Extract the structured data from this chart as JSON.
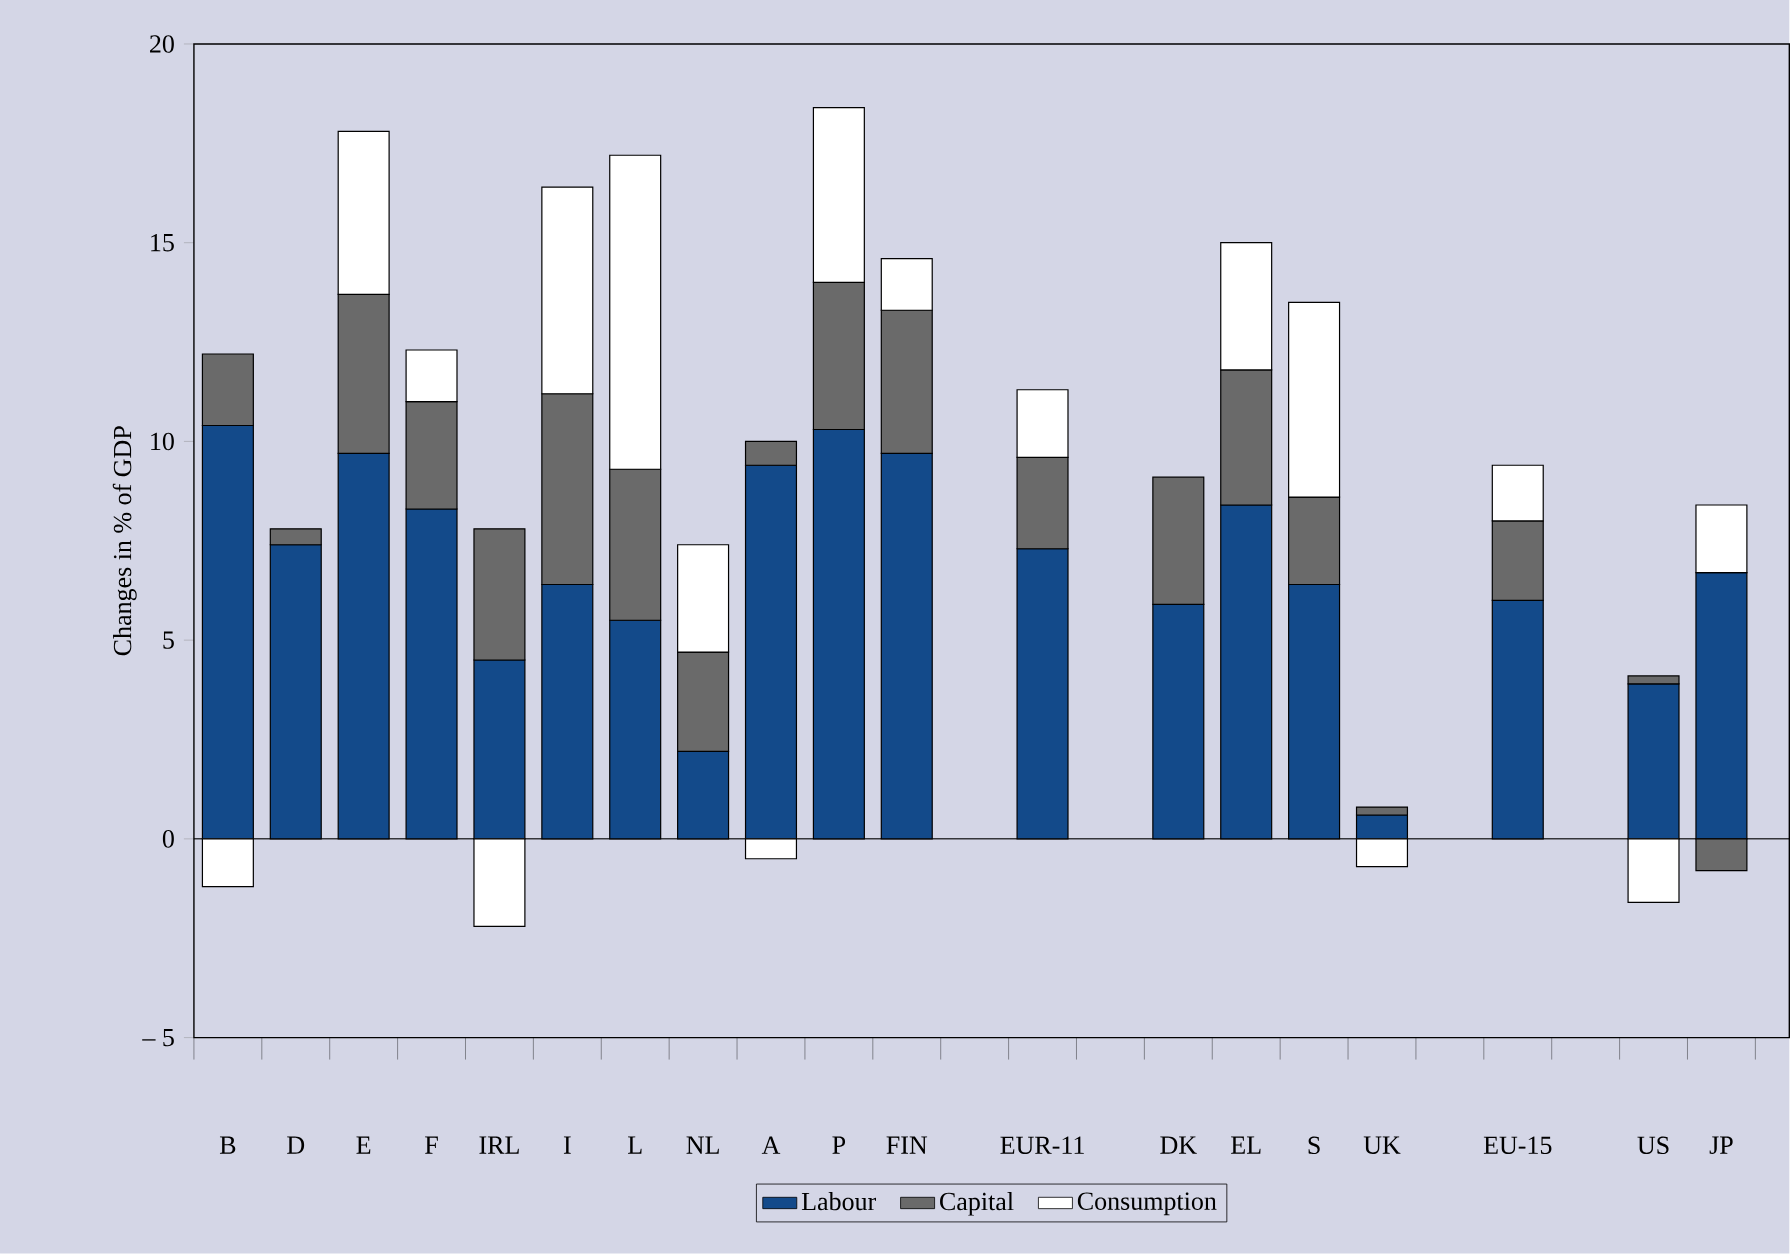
{
  "chart_data": {
    "type": "bar",
    "stacked": true,
    "ylabel": "Changes in % of GDP",
    "categories": [
      "B",
      "D",
      "E",
      "F",
      "IRL",
      "I",
      "L",
      "NL",
      "A",
      "P",
      "FIN",
      null,
      "EUR-11",
      null,
      "DK",
      "EL",
      "S",
      "UK",
      null,
      "EU-15",
      null,
      "US",
      "JP"
    ],
    "series": [
      {
        "name": "Labour",
        "color": "#134a8a",
        "values": [
          10.4,
          7.4,
          9.7,
          8.3,
          4.5,
          6.4,
          5.5,
          2.2,
          9.4,
          10.3,
          9.7,
          null,
          7.3,
          null,
          5.9,
          8.4,
          6.4,
          0.6,
          null,
          6.0,
          null,
          3.9,
          6.7
        ]
      },
      {
        "name": "Capital",
        "color": "#6a6a6a",
        "values": [
          1.8,
          0.4,
          4.0,
          2.7,
          3.3,
          4.8,
          3.8,
          2.5,
          0.6,
          3.7,
          3.6,
          null,
          2.3,
          null,
          3.2,
          3.4,
          2.2,
          0.2,
          null,
          2.0,
          null,
          0.2,
          -0.8
        ]
      },
      {
        "name": "Consumption",
        "color": "#ffffff",
        "values": [
          -1.2,
          null,
          4.1,
          1.3,
          -2.2,
          5.2,
          7.9,
          2.7,
          -0.5,
          4.4,
          1.3,
          null,
          1.7,
          null,
          null,
          3.2,
          4.9,
          -0.7,
          null,
          1.4,
          null,
          -1.6,
          1.7
        ]
      }
    ],
    "ylim": [
      -5,
      20
    ],
    "yticks": [
      {
        "value": -5,
        "label": "– 5"
      },
      0,
      5,
      10,
      15,
      20
    ],
    "legend": "bottom"
  }
}
